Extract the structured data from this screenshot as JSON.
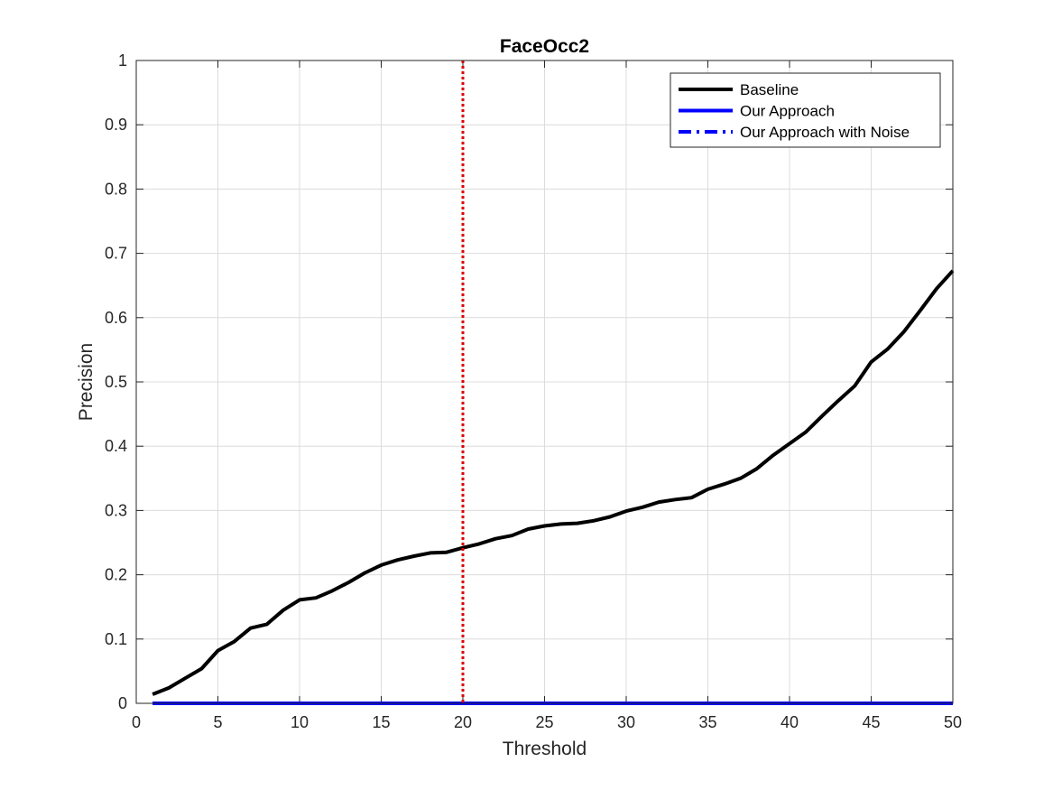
{
  "chart_data": {
    "type": "line",
    "title": "FaceOcc2",
    "xlabel": "Threshold",
    "ylabel": "Precision",
    "xlim": [
      0,
      50
    ],
    "ylim": [
      0,
      1
    ],
    "xticks": [
      "0",
      "5",
      "10",
      "15",
      "20",
      "25",
      "30",
      "35",
      "40",
      "45",
      "50"
    ],
    "yticks": [
      "0",
      "0.1",
      "0.2",
      "0.3",
      "0.4",
      "0.5",
      "0.6",
      "0.7",
      "0.8",
      "0.9",
      "1"
    ],
    "grid": true,
    "legend_position": "top-right",
    "x": [
      1,
      2,
      3,
      4,
      5,
      6,
      7,
      8,
      9,
      10,
      11,
      12,
      13,
      14,
      15,
      16,
      17,
      18,
      19,
      20,
      21,
      22,
      23,
      24,
      25,
      26,
      27,
      28,
      29,
      30,
      31,
      32,
      33,
      34,
      35,
      36,
      37,
      38,
      39,
      40,
      41,
      42,
      43,
      44,
      45,
      46,
      47,
      48,
      49,
      50
    ],
    "series": [
      {
        "name": "Baseline",
        "color": "#000000",
        "style": "solid",
        "values": [
          0.014,
          0.024,
          0.039,
          0.054,
          0.082,
          0.096,
          0.117,
          0.123,
          0.145,
          0.161,
          0.164,
          0.175,
          0.188,
          0.203,
          0.215,
          0.223,
          0.229,
          0.234,
          0.235,
          0.242,
          0.248,
          0.256,
          0.261,
          0.271,
          0.276,
          0.279,
          0.28,
          0.284,
          0.29,
          0.299,
          0.305,
          0.313,
          0.317,
          0.32,
          0.333,
          0.341,
          0.35,
          0.365,
          0.386,
          0.404,
          0.422,
          0.447,
          0.471,
          0.494,
          0.531,
          0.551,
          0.578,
          0.611,
          0.645,
          0.673
        ]
      },
      {
        "name": "Our Approach",
        "color": "#0000ff",
        "style": "solid",
        "values": [
          0,
          0,
          0,
          0,
          0,
          0,
          0,
          0,
          0,
          0,
          0,
          0,
          0,
          0,
          0,
          0,
          0,
          0,
          0,
          0,
          0,
          0,
          0,
          0,
          0,
          0,
          0,
          0,
          0,
          0,
          0,
          0,
          0,
          0,
          0,
          0,
          0,
          0,
          0,
          0,
          0,
          0,
          0,
          0,
          0,
          0,
          0,
          0,
          0,
          0
        ]
      },
      {
        "name": "Our Approach with Noise",
        "color": "#0000ff",
        "style": "dashdot",
        "values": [
          0,
          0,
          0,
          0,
          0,
          0,
          0,
          0,
          0,
          0,
          0,
          0,
          0,
          0,
          0,
          0,
          0,
          0,
          0,
          0,
          0,
          0,
          0,
          0,
          0,
          0,
          0,
          0,
          0,
          0,
          0,
          0,
          0,
          0,
          0,
          0,
          0,
          0,
          0,
          0,
          0,
          0,
          0,
          0,
          0,
          0,
          0,
          0,
          0,
          0
        ]
      }
    ],
    "vline": {
      "x": 20,
      "color": "#dd0000",
      "style": "dotted"
    }
  }
}
